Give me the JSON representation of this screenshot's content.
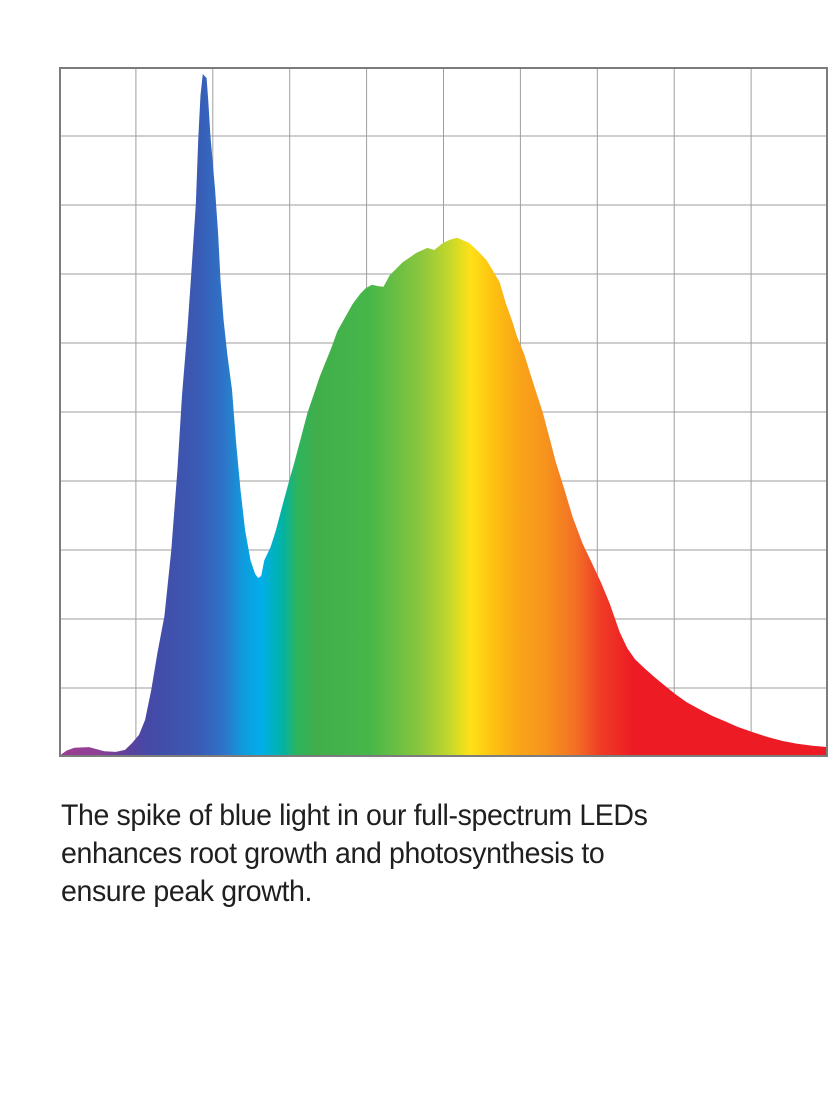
{
  "page": {
    "background": "#ffffff"
  },
  "chart": {
    "border_color": "#7c7c7c",
    "grid_color": "#9e9e9e",
    "plot_background": "#ffffff"
  },
  "chart_data": {
    "type": "area",
    "title": "",
    "xlabel": "",
    "ylabel": "",
    "axis_tick_labels": "none",
    "legend": "none",
    "x_range": [
      0,
      1
    ],
    "y_range": [
      0,
      1
    ],
    "grid": {
      "columns": 10,
      "rows": 10,
      "visible": true
    },
    "series": [
      {
        "name": "led-spectral-power-distribution",
        "description": "relative intensity vs normalized position across visible spectrum; blue spike near 0.19, broad green-yellow peak near 0.52, long red tail",
        "points": [
          [
            0.0,
            0.0
          ],
          [
            0.01,
            0.008
          ],
          [
            0.02,
            0.012
          ],
          [
            0.039,
            0.013
          ],
          [
            0.059,
            0.007
          ],
          [
            0.074,
            0.006
          ],
          [
            0.086,
            0.009
          ],
          [
            0.095,
            0.019
          ],
          [
            0.104,
            0.031
          ],
          [
            0.112,
            0.053
          ],
          [
            0.12,
            0.097
          ],
          [
            0.128,
            0.151
          ],
          [
            0.137,
            0.205
          ],
          [
            0.146,
            0.302
          ],
          [
            0.154,
            0.419
          ],
          [
            0.16,
            0.529
          ],
          [
            0.167,
            0.625
          ],
          [
            0.172,
            0.708
          ],
          [
            0.178,
            0.811
          ],
          [
            0.181,
            0.903
          ],
          [
            0.184,
            0.969
          ],
          [
            0.187,
            1.0
          ],
          [
            0.192,
            0.994
          ],
          [
            0.194,
            0.962
          ],
          [
            0.197,
            0.908
          ],
          [
            0.203,
            0.83
          ],
          [
            0.207,
            0.764
          ],
          [
            0.21,
            0.698
          ],
          [
            0.214,
            0.639
          ],
          [
            0.219,
            0.588
          ],
          [
            0.225,
            0.537
          ],
          [
            0.23,
            0.463
          ],
          [
            0.236,
            0.39
          ],
          [
            0.242,
            0.331
          ],
          [
            0.249,
            0.287
          ],
          [
            0.255,
            0.267
          ],
          [
            0.259,
            0.261
          ],
          [
            0.263,
            0.264
          ],
          [
            0.267,
            0.287
          ],
          [
            0.275,
            0.306
          ],
          [
            0.282,
            0.331
          ],
          [
            0.29,
            0.365
          ],
          [
            0.299,
            0.402
          ],
          [
            0.306,
            0.43
          ],
          [
            0.315,
            0.468
          ],
          [
            0.323,
            0.503
          ],
          [
            0.33,
            0.526
          ],
          [
            0.339,
            0.556
          ],
          [
            0.346,
            0.576
          ],
          [
            0.354,
            0.598
          ],
          [
            0.362,
            0.623
          ],
          [
            0.373,
            0.645
          ],
          [
            0.382,
            0.663
          ],
          [
            0.392,
            0.678
          ],
          [
            0.399,
            0.686
          ],
          [
            0.407,
            0.691
          ],
          [
            0.415,
            0.689
          ],
          [
            0.422,
            0.688
          ],
          [
            0.43,
            0.705
          ],
          [
            0.447,
            0.724
          ],
          [
            0.465,
            0.738
          ],
          [
            0.479,
            0.745
          ],
          [
            0.488,
            0.742
          ],
          [
            0.499,
            0.752
          ],
          [
            0.508,
            0.757
          ],
          [
            0.518,
            0.76
          ],
          [
            0.534,
            0.752
          ],
          [
            0.547,
            0.738
          ],
          [
            0.556,
            0.727
          ],
          [
            0.565,
            0.71
          ],
          [
            0.573,
            0.695
          ],
          [
            0.581,
            0.664
          ],
          [
            0.589,
            0.639
          ],
          [
            0.596,
            0.614
          ],
          [
            0.605,
            0.589
          ],
          [
            0.613,
            0.56
          ],
          [
            0.621,
            0.532
          ],
          [
            0.629,
            0.504
          ],
          [
            0.638,
            0.466
          ],
          [
            0.646,
            0.431
          ],
          [
            0.657,
            0.392
          ],
          [
            0.668,
            0.35
          ],
          [
            0.681,
            0.311
          ],
          [
            0.693,
            0.283
          ],
          [
            0.705,
            0.254
          ],
          [
            0.716,
            0.224
          ],
          [
            0.729,
            0.182
          ],
          [
            0.739,
            0.158
          ],
          [
            0.749,
            0.142
          ],
          [
            0.761,
            0.129
          ],
          [
            0.774,
            0.116
          ],
          [
            0.787,
            0.104
          ],
          [
            0.801,
            0.091
          ],
          [
            0.816,
            0.079
          ],
          [
            0.832,
            0.069
          ],
          [
            0.849,
            0.059
          ],
          [
            0.866,
            0.051
          ],
          [
            0.882,
            0.043
          ],
          [
            0.902,
            0.035
          ],
          [
            0.921,
            0.028
          ],
          [
            0.941,
            0.022
          ],
          [
            0.96,
            0.018
          ],
          [
            0.98,
            0.015
          ],
          [
            1.0,
            0.013
          ]
        ]
      }
    ],
    "gradient_stops": [
      [
        0.0,
        "#9c3d92"
      ],
      [
        0.05,
        "#8f4095"
      ],
      [
        0.085,
        "#62409c"
      ],
      [
        0.115,
        "#4549a6"
      ],
      [
        0.18,
        "#3a5ab4"
      ],
      [
        0.215,
        "#2e74c8"
      ],
      [
        0.24,
        "#0f9cdd"
      ],
      [
        0.263,
        "#00aeea"
      ],
      [
        0.29,
        "#00b3a6"
      ],
      [
        0.31,
        "#2fb45c"
      ],
      [
        0.335,
        "#41ae4b"
      ],
      [
        0.405,
        "#47b749"
      ],
      [
        0.47,
        "#8bc63e"
      ],
      [
        0.508,
        "#c4d82b"
      ],
      [
        0.535,
        "#fee117"
      ],
      [
        0.565,
        "#fdc110"
      ],
      [
        0.6,
        "#f9a418"
      ],
      [
        0.632,
        "#f7941d"
      ],
      [
        0.672,
        "#f37025"
      ],
      [
        0.705,
        "#ef3b26"
      ],
      [
        0.745,
        "#ed1c24"
      ],
      [
        1.0,
        "#ed1c24"
      ]
    ]
  },
  "caption": {
    "color": "#1f1f1f",
    "lines": [
      "The spike of blue light in our full-spectrum LEDs",
      "enhances root growth and photosynthesis to",
      "ensure peak growth."
    ]
  }
}
